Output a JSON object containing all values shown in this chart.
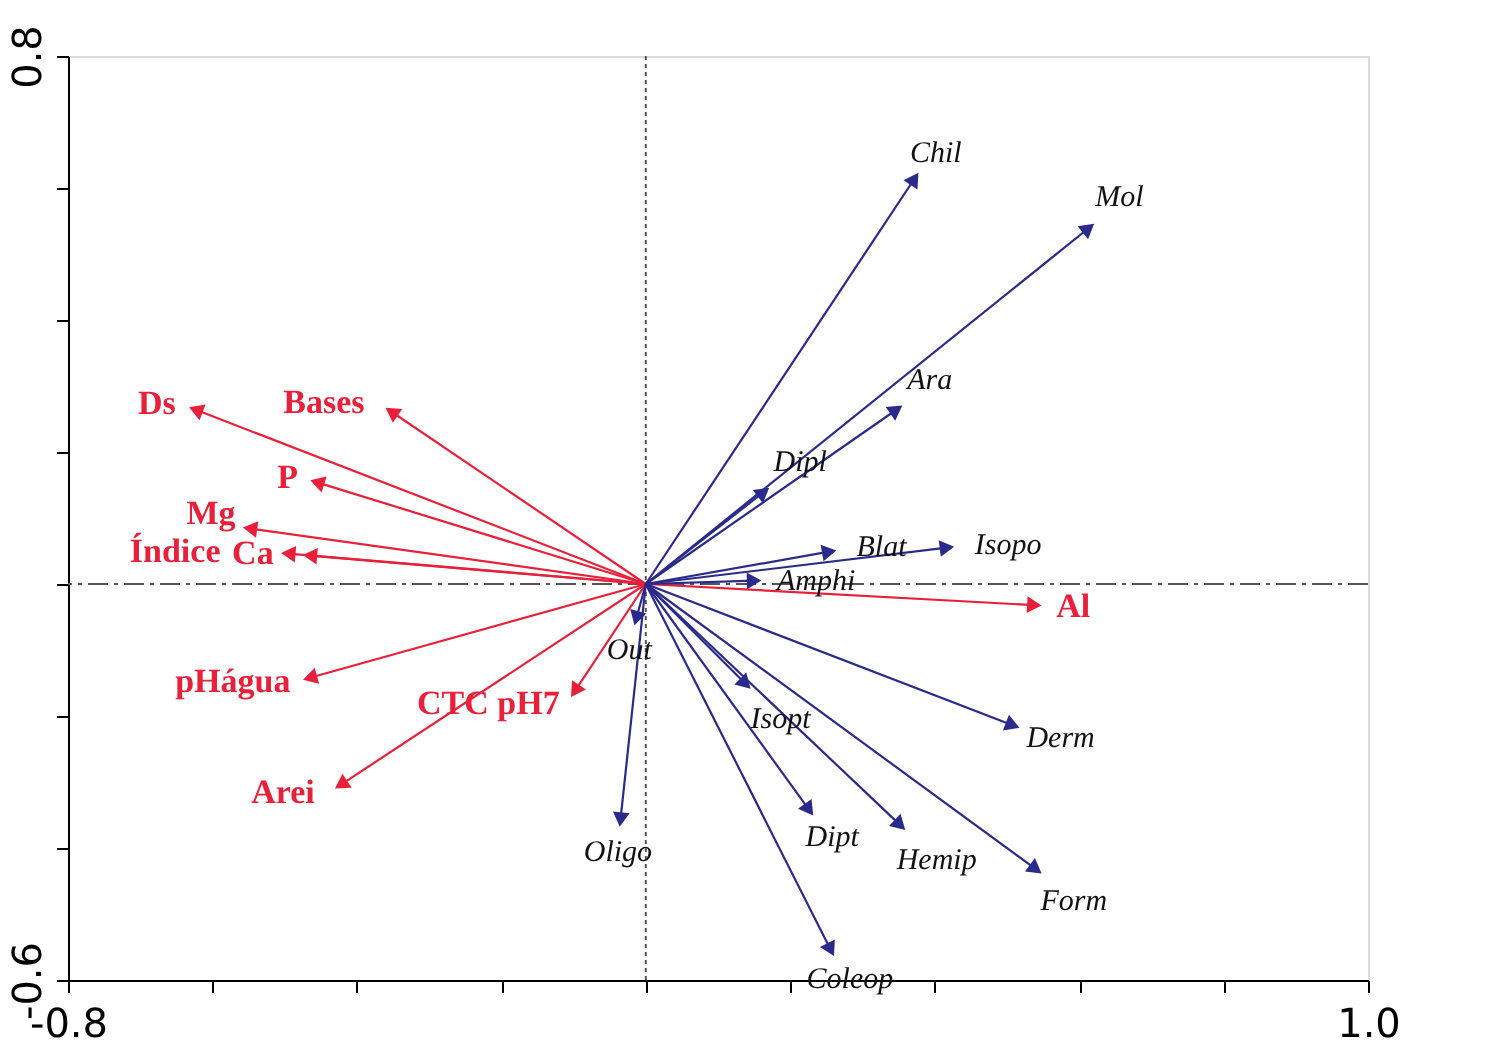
{
  "chart_data": {
    "type": "scatter",
    "marker": "triangle",
    "grid": false,
    "legend": false,
    "xlim": [
      -0.8,
      1.0
    ],
    "ylim": [
      -0.6,
      0.8
    ],
    "xticks": [
      -0.8,
      {
        "value": -0.6,
        "label": null
      },
      {
        "value": -0.4,
        "label": null
      },
      {
        "value": -0.2,
        "label": null
      },
      {
        "value": 0,
        "label": null
      },
      {
        "value": 0.2,
        "label": null
      },
      {
        "value": 0.4,
        "label": null
      },
      {
        "value": 0.6,
        "label": null
      },
      {
        "value": 0.8,
        "label": null
      },
      {
        "value": 1.0,
        "label": "1.0"
      }
    ],
    "yticks": [
      -0.6,
      {
        "value": -0.4,
        "label": null
      },
      {
        "value": -0.2,
        "label": null
      },
      {
        "value": 0,
        "label": null
      },
      {
        "value": 0.2,
        "label": null
      },
      {
        "value": 0.4,
        "label": null
      },
      {
        "value": 0.6,
        "label": null
      },
      0.8
    ],
    "ref_lines": [
      {
        "axis": "x",
        "value": 0,
        "line_style": "dotted",
        "color": "#555555"
      },
      {
        "axis": "y",
        "value": 0,
        "line_style": "dashed",
        "color": "#555555"
      }
    ],
    "series": [
      {
        "color": "#e8203a",
        "x": [
          -0.623,
          -0.352,
          -0.455,
          -0.548,
          -0.495,
          -0.465,
          -0.465,
          -0.422,
          -0.098,
          0.538
        ],
        "values": [
          0.264,
          0.261,
          0.154,
          0.084,
          0.046,
          0.043,
          -0.142,
          -0.304,
          -0.162,
          -0.032
        ]
      },
      {
        "color": "#2a2a8c",
        "x": [
          0.372,
          0.613,
          0.347,
          0.163,
          0.254,
          0.417,
          0.15,
          -0.013,
          -0.035,
          0.138,
          0.226,
          0.352,
          0.256,
          0.508,
          0.54
        ],
        "values": [
          0.614,
          0.539,
          0.264,
          0.139,
          0.049,
          0.055,
          0.005,
          -0.052,
          -0.357,
          -0.151,
          -0.342,
          -0.365,
          -0.554,
          -0.214,
          -0.432
        ]
      }
    ],
    "annotations": [
      {
        "text": "Ds",
        "x": -0.623,
        "y": 0.264
      },
      {
        "text": "Bases",
        "x": -0.352,
        "y": 0.261
      },
      {
        "text": "P",
        "x": -0.455,
        "y": 0.154
      },
      {
        "text": "Mg",
        "x": -0.548,
        "y": 0.084
      },
      {
        "text": "Índice",
        "x": -0.495,
        "y": 0.046
      },
      {
        "text": "Ca",
        "x": -0.465,
        "y": 0.043
      },
      {
        "text": "pHágua",
        "x": -0.465,
        "y": -0.142
      },
      {
        "text": "Arei",
        "x": -0.422,
        "y": -0.304
      },
      {
        "text": "CTC pH7",
        "x": -0.098,
        "y": -0.162
      },
      {
        "text": "Al",
        "x": 0.538,
        "y": -0.032
      },
      {
        "text": "Chil",
        "x": 0.372,
        "y": 0.614
      },
      {
        "text": "Mol",
        "x": 0.613,
        "y": 0.539
      },
      {
        "text": "Ara",
        "x": 0.347,
        "y": 0.264
      },
      {
        "text": "Dipl",
        "x": 0.163,
        "y": 0.139
      },
      {
        "text": "Blat",
        "x": 0.254,
        "y": 0.049
      },
      {
        "text": "Isopo",
        "x": 0.417,
        "y": 0.055
      },
      {
        "text": "Amphi",
        "x": 0.15,
        "y": 0.005
      },
      {
        "text": "Out",
        "x": -0.013,
        "y": -0.052
      },
      {
        "text": "Oligo",
        "x": -0.035,
        "y": -0.357
      },
      {
        "text": "Isopt",
        "x": 0.138,
        "y": -0.151
      },
      {
        "text": "Dipt",
        "x": 0.226,
        "y": -0.342
      },
      {
        "text": "Hemip",
        "x": 0.352,
        "y": -0.365
      },
      {
        "text": "Coleop",
        "x": 0.256,
        "y": -0.554
      },
      {
        "text": "Derm",
        "x": 0.508,
        "y": -0.214
      },
      {
        "text": "Form",
        "x": 0.54,
        "y": -0.432
      }
    ]
  }
}
